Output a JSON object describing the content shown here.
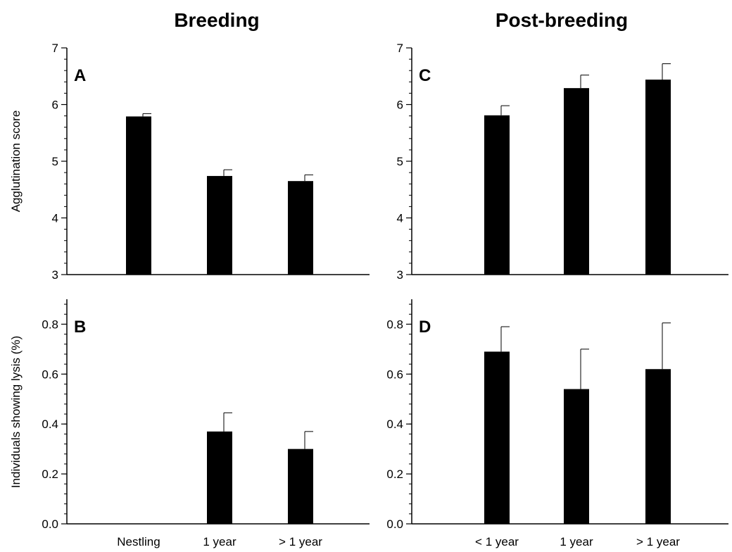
{
  "column_titles": [
    "Breeding",
    "Post-breeding"
  ],
  "chart_data": [
    {
      "type": "bar",
      "panel": "A",
      "title": "Breeding",
      "ylabel": "Agglutination score",
      "xlabel": "",
      "categories": [
        "Nestling",
        "1 year",
        "> 1 year"
      ],
      "values": [
        5.79,
        4.74,
        4.65
      ],
      "error": [
        0.05,
        0.11,
        0.11
      ],
      "ylim": [
        3,
        7
      ],
      "yticks": [
        3,
        4,
        5,
        6,
        7
      ],
      "ytick_labels": [
        "3",
        "4",
        "5",
        "6",
        "7"
      ],
      "bar_color": "#000000",
      "grid": false
    },
    {
      "type": "bar",
      "panel": "C",
      "title": "Post-breeding",
      "ylabel": "",
      "xlabel": "",
      "categories": [
        "< 1 year",
        "1 year",
        "> 1 year"
      ],
      "values": [
        5.81,
        6.29,
        6.44
      ],
      "error": [
        0.17,
        0.23,
        0.28
      ],
      "ylim": [
        3,
        7
      ],
      "yticks": [
        3,
        4,
        5,
        6,
        7
      ],
      "ytick_labels": [
        "3",
        "4",
        "5",
        "6",
        "7"
      ],
      "bar_color": "#000000",
      "grid": false
    },
    {
      "type": "bar",
      "panel": "B",
      "ylabel": "Individuals showing lysis (%)",
      "xlabel": "",
      "categories": [
        "Nestling",
        "1 year",
        "> 1 year"
      ],
      "values": [
        0.0,
        0.37,
        0.3
      ],
      "error": [
        0.0,
        0.075,
        0.07
      ],
      "ylim": [
        0,
        0.9
      ],
      "yticks": [
        0.0,
        0.2,
        0.4,
        0.6,
        0.8
      ],
      "ytick_labels": [
        "0.0",
        "0.2",
        "0.4",
        "0.6",
        "0.8"
      ],
      "bar_color": "#000000",
      "grid": false
    },
    {
      "type": "bar",
      "panel": "D",
      "ylabel": "",
      "xlabel": "",
      "categories": [
        "< 1 year",
        "1 year",
        "> 1 year"
      ],
      "values": [
        0.69,
        0.54,
        0.62
      ],
      "error": [
        0.1,
        0.16,
        0.185
      ],
      "ylim": [
        0,
        0.9
      ],
      "yticks": [
        0.0,
        0.2,
        0.4,
        0.6,
        0.8
      ],
      "ytick_labels": [
        "0.0",
        "0.2",
        "0.4",
        "0.6",
        "0.8"
      ],
      "bar_color": "#000000",
      "grid": false
    }
  ]
}
